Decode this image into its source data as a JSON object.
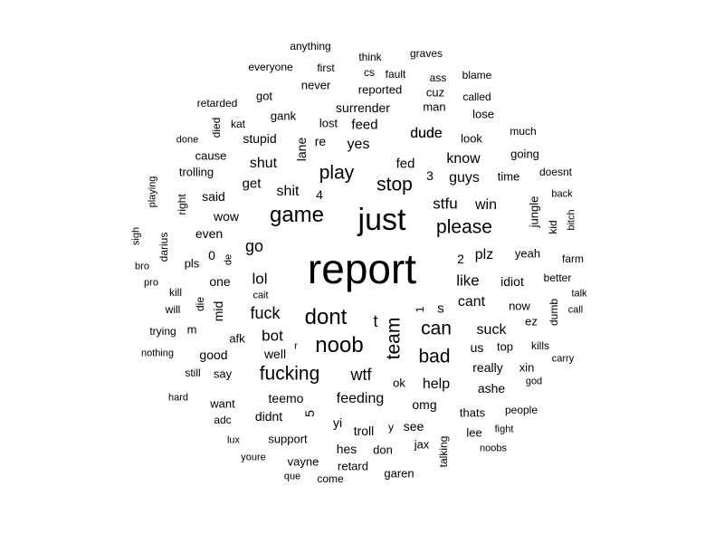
{
  "cloud": {
    "ink_color": "#000000",
    "background": "#ffffff",
    "words": [
      "report",
      "just",
      "game",
      "dont",
      "noob",
      "play",
      "stop",
      "please",
      "fucking",
      "team",
      "can",
      "bad",
      "fuck",
      "go",
      "lol",
      "wtf",
      "t",
      "suck",
      "like",
      "stfu",
      "shut",
      "dude",
      "yes",
      "know",
      "guys",
      "win",
      "plz",
      "help",
      "feeding",
      "bot",
      "cant",
      "idiot",
      "feed",
      "surrender",
      "reported",
      "fed",
      "shit",
      "get",
      "stupid",
      "lane",
      "re",
      "really",
      "ashe",
      "teemo",
      "omg",
      "see",
      "troll",
      "good",
      "one",
      "mid",
      "even",
      "wow",
      "said",
      "trolling",
      "cause",
      "gank",
      "got",
      "never",
      "lost",
      "man",
      "cuz",
      "dude",
      "look",
      "lose",
      "called",
      "blame",
      "ass",
      "fault",
      "cs",
      "graves",
      "think",
      "first",
      "anything",
      "everyone",
      "retarded",
      "died",
      "kat",
      "done",
      "time",
      "going",
      "much",
      "doesnt",
      "back",
      "jungle",
      "kid",
      "bitch",
      "yeah",
      "farm",
      "better",
      "talk",
      "call",
      "dumb",
      "ez",
      "now",
      "carry",
      "kills",
      "xin",
      "god",
      "top",
      "us",
      "s",
      "1",
      "2",
      "3",
      "4",
      "5",
      "0",
      "r",
      "m",
      "y",
      "well",
      "afk",
      "say",
      "want",
      "still",
      "hard",
      "nothing",
      "trying",
      "will",
      "kill",
      "pro",
      "bro",
      "sigh",
      "darius",
      "playing",
      "right",
      "pls",
      "de",
      "die",
      "cait",
      "adc",
      "lux",
      "youre",
      "que",
      "come",
      "retard",
      "hes",
      "don",
      "garen",
      "vayne",
      "support",
      "didnt",
      "yi",
      "ok",
      "jax",
      "talking",
      "lee",
      "noobs",
      "fight",
      "people",
      "thats"
    ]
  }
}
